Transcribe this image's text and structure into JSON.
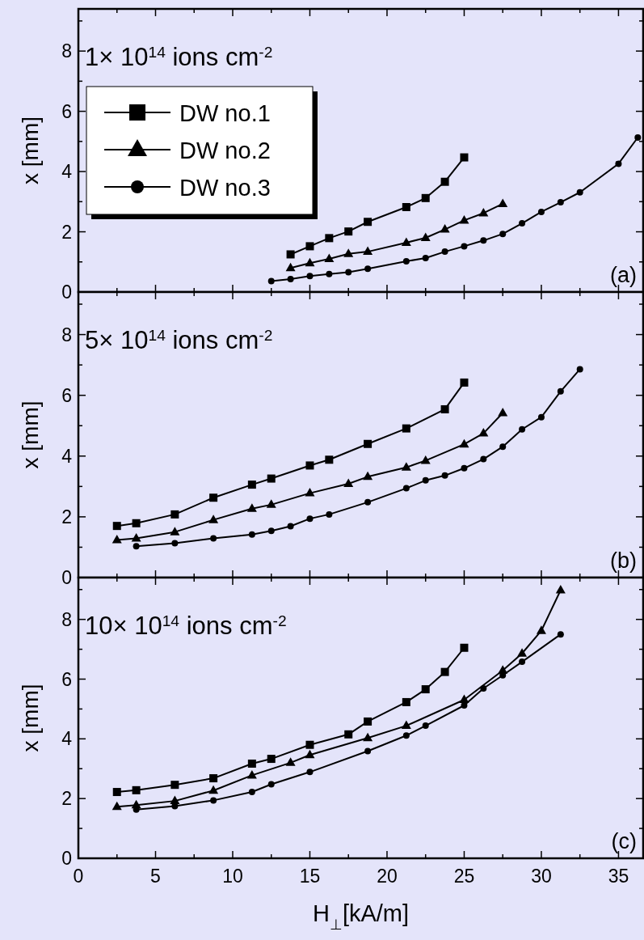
{
  "chart_data": [
    {
      "type": "line",
      "title": "1× 10$^{14}$ ions cm$^{-2}$",
      "ylabel": "x [mm]",
      "annotations": [
        "(a)"
      ],
      "xlim": [
        0,
        36.6
      ],
      "ylim": [
        0,
        9.4
      ],
      "xticks": [
        0,
        {
          "value": 2.5,
          "label": null
        },
        5,
        {
          "value": 7.5,
          "label": null
        },
        10,
        {
          "value": 12.5,
          "label": null
        },
        15,
        {
          "value": 17.5,
          "label": null
        },
        20,
        {
          "value": 22.5,
          "label": null
        },
        25,
        {
          "value": 27.5,
          "label": null
        },
        30,
        {
          "value": 32.5,
          "label": null
        },
        35
      ],
      "yticks": [
        0,
        {
          "value": 1,
          "label": null
        },
        2,
        {
          "value": 3,
          "label": null
        },
        4,
        {
          "value": 5,
          "label": null
        },
        6,
        {
          "value": 7,
          "label": null
        },
        8,
        {
          "value": 9,
          "label": null
        }
      ],
      "tick_labels": "y",
      "legend": "top left",
      "line_style": "solid",
      "series": [
        {
          "name": "DW no.1",
          "color": "#000000",
          "marker": "square",
          "x": [
            13.75,
            15,
            16.25,
            17.5,
            18.75,
            21.25,
            22.5,
            23.75,
            25
          ],
          "values": [
            1.25,
            1.52,
            1.79,
            2.01,
            2.33,
            2.82,
            3.12,
            3.66,
            4.47
          ]
        },
        {
          "name": "DW no.2",
          "color": "#000000",
          "marker": "triangle",
          "x": [
            13.75,
            15,
            16.25,
            17.5,
            18.75,
            21.25,
            22.5,
            23.75,
            25,
            26.25,
            27.5
          ],
          "values": [
            0.8,
            0.96,
            1.1,
            1.27,
            1.34,
            1.64,
            1.8,
            2.08,
            2.38,
            2.62,
            2.93
          ]
        },
        {
          "name": "DW no.3",
          "color": "#000000",
          "marker": "circle",
          "x": [
            12.5,
            13.75,
            15,
            16.25,
            17.5,
            18.75,
            21.25,
            22.5,
            23.75,
            25,
            26.25,
            27.5,
            28.75,
            30,
            31.25,
            32.5,
            35,
            36.25
          ],
          "values": [
            0.36,
            0.43,
            0.53,
            0.6,
            0.66,
            0.77,
            1.02,
            1.13,
            1.34,
            1.52,
            1.71,
            1.93,
            2.28,
            2.66,
            2.98,
            3.31,
            4.26,
            5.13
          ]
        }
      ]
    },
    {
      "type": "line",
      "title": "5× 10$^{14}$ ions cm$^{-2}$",
      "ylabel": "x [mm]",
      "annotations": [
        "(b)"
      ],
      "xlim": [
        0,
        36.6
      ],
      "ylim": [
        0,
        9.4
      ],
      "xticks": [
        0,
        {
          "value": 2.5,
          "label": null
        },
        5,
        {
          "value": 7.5,
          "label": null
        },
        10,
        {
          "value": 12.5,
          "label": null
        },
        15,
        {
          "value": 17.5,
          "label": null
        },
        20,
        {
          "value": 22.5,
          "label": null
        },
        25,
        {
          "value": 27.5,
          "label": null
        },
        30,
        {
          "value": 32.5,
          "label": null
        },
        35
      ],
      "yticks": [
        0,
        {
          "value": 1,
          "label": null
        },
        2,
        {
          "value": 3,
          "label": null
        },
        4,
        {
          "value": 5,
          "label": null
        },
        6,
        {
          "value": 7,
          "label": null
        },
        8,
        {
          "value": 9,
          "label": null
        }
      ],
      "tick_labels": "y",
      "line_style": "solid",
      "series": [
        {
          "color": "#000000",
          "marker": "square",
          "x": [
            2.5,
            3.75,
            6.25,
            8.75,
            11.25,
            12.5,
            15,
            16.25,
            18.75,
            21.25,
            23.75,
            25
          ],
          "values": [
            1.7,
            1.79,
            2.08,
            2.63,
            3.06,
            3.26,
            3.69,
            3.88,
            4.4,
            4.91,
            5.54,
            6.42
          ]
        },
        {
          "color": "#000000",
          "marker": "triangle",
          "x": [
            2.5,
            3.75,
            6.25,
            8.75,
            11.25,
            12.5,
            15,
            17.5,
            18.75,
            21.25,
            22.5,
            25,
            26.25,
            27.5
          ],
          "values": [
            1.24,
            1.29,
            1.5,
            1.9,
            2.27,
            2.4,
            2.78,
            3.09,
            3.32,
            3.63,
            3.85,
            4.39,
            4.75,
            5.42
          ]
        },
        {
          "color": "#000000",
          "marker": "circle",
          "x": [
            3.75,
            6.25,
            8.75,
            11.25,
            12.5,
            13.75,
            15,
            16.25,
            18.75,
            21.25,
            22.5,
            23.75,
            25,
            26.25,
            27.5,
            28.75,
            30,
            31.25,
            32.5
          ],
          "values": [
            1.03,
            1.13,
            1.29,
            1.42,
            1.54,
            1.69,
            1.94,
            2.08,
            2.48,
            2.94,
            3.2,
            3.36,
            3.6,
            3.9,
            4.31,
            4.88,
            5.28,
            6.13,
            6.86
          ]
        }
      ]
    },
    {
      "type": "line",
      "title": "10× 10$^{14}$ ions cm$^{-2}$",
      "xlabel": "H$_{⊥}$[kA/m]",
      "ylabel": "x [mm]",
      "annotations": [
        "(c)"
      ],
      "xlim": [
        0,
        36.6
      ],
      "ylim": [
        0,
        9.4
      ],
      "xticks": [
        0,
        {
          "value": 2.5,
          "label": null
        },
        5,
        {
          "value": 7.5,
          "label": null
        },
        10,
        {
          "value": 12.5,
          "label": null
        },
        15,
        {
          "value": 17.5,
          "label": null
        },
        20,
        {
          "value": 22.5,
          "label": null
        },
        25,
        {
          "value": 27.5,
          "label": null
        },
        30,
        {
          "value": 32.5,
          "label": null
        },
        35
      ],
      "yticks": [
        0,
        {
          "value": 1,
          "label": null
        },
        2,
        {
          "value": 3,
          "label": null
        },
        4,
        {
          "value": 5,
          "label": null
        },
        6,
        {
          "value": 7,
          "label": null
        },
        8,
        {
          "value": 9,
          "label": null
        }
      ],
      "line_style": "solid",
      "series": [
        {
          "color": "#000000",
          "marker": "square",
          "x": [
            2.5,
            3.75,
            6.25,
            8.75,
            11.25,
            12.5,
            15,
            17.5,
            18.75,
            21.25,
            22.5,
            23.75,
            25
          ],
          "values": [
            2.22,
            2.28,
            2.46,
            2.68,
            3.17,
            3.33,
            3.8,
            4.15,
            4.58,
            5.23,
            5.66,
            6.24,
            7.05
          ]
        },
        {
          "color": "#000000",
          "marker": "triangle",
          "x": [
            2.5,
            3.75,
            6.25,
            8.75,
            11.25,
            13.75,
            15,
            18.75,
            21.25,
            25,
            27.5,
            28.75,
            30,
            31.25
          ],
          "values": [
            1.73,
            1.78,
            1.92,
            2.27,
            2.78,
            3.2,
            3.46,
            4.03,
            4.44,
            5.31,
            6.29,
            6.86,
            7.62,
            8.98
          ]
        },
        {
          "color": "#000000",
          "marker": "circle",
          "x": [
            3.75,
            6.25,
            8.75,
            11.25,
            12.5,
            15,
            18.75,
            21.25,
            22.5,
            25,
            26.25,
            27.5,
            28.75,
            31.25
          ],
          "values": [
            1.63,
            1.75,
            1.94,
            2.22,
            2.48,
            2.89,
            3.59,
            4.11,
            4.44,
            5.12,
            5.69,
            6.13,
            6.58,
            7.5
          ]
        }
      ]
    }
  ]
}
